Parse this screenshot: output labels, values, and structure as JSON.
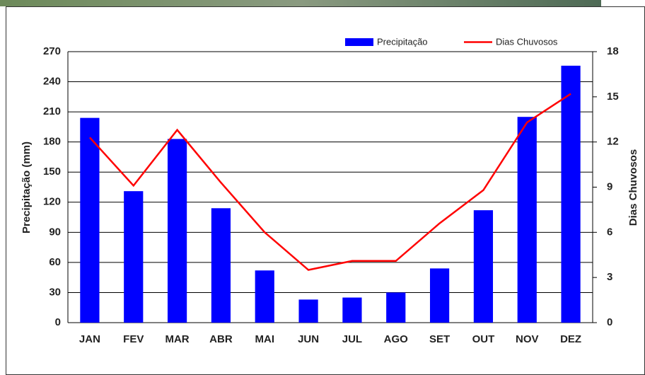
{
  "chart_data": {
    "type": "bar-line",
    "categories": [
      "JAN",
      "FEV",
      "MAR",
      "ABR",
      "MAI",
      "JUN",
      "JUL",
      "AGO",
      "SET",
      "OUT",
      "NOV",
      "DEZ"
    ],
    "series": [
      {
        "name": "Precipitação",
        "color": "#0000ff",
        "type": "bar",
        "values": [
          204,
          131,
          183,
          114,
          52,
          23,
          25,
          30,
          54,
          112,
          205,
          256
        ]
      },
      {
        "name": "Dias Chuvosos",
        "color": "#ff0000",
        "type": "line",
        "axis": "y2",
        "values": [
          12.3,
          9.1,
          12.8,
          9.3,
          6.0,
          3.5,
          4.1,
          4.1,
          6.6,
          8.8,
          13.3,
          15.2
        ]
      }
    ],
    "ylabel": "Precipitação (mm)",
    "y2label": "Dias Chuvosos",
    "ylim": [
      0,
      270
    ],
    "yticks": [
      0,
      30,
      60,
      90,
      120,
      150,
      180,
      210,
      240,
      270
    ],
    "y2lim": [
      0,
      18
    ],
    "y2ticks": [
      0,
      3,
      6,
      9,
      12,
      15,
      18
    ],
    "grid": true,
    "legend": "top-right"
  }
}
